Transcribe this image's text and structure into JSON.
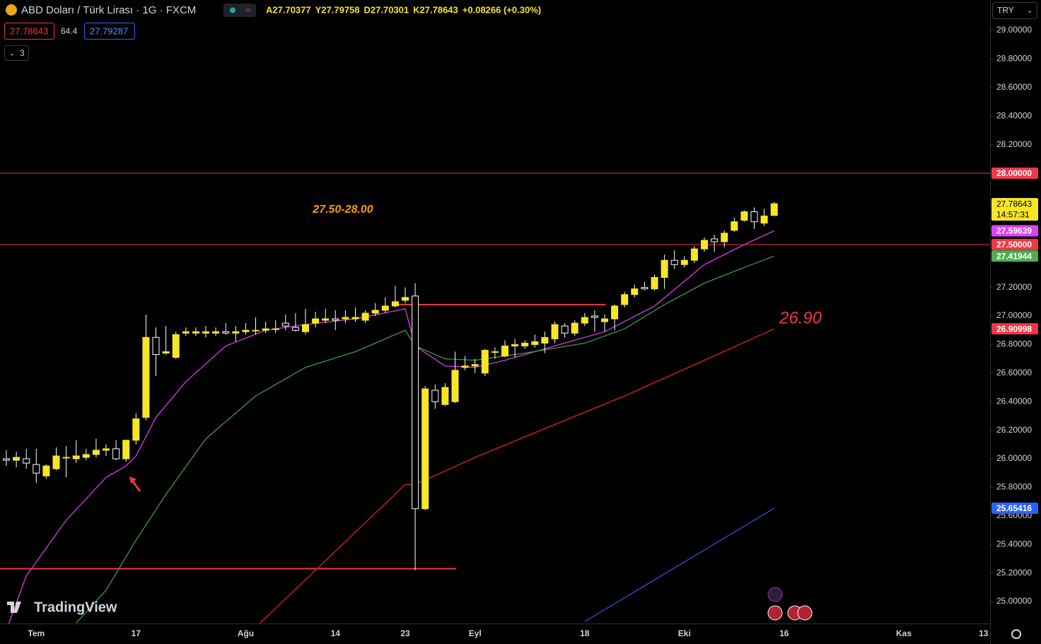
{
  "chart_data": {
    "type": "candlestick",
    "title": "ABD Doları / Türk Lirası · 1G · FXCM",
    "ohlc_labels": [
      "A",
      "Y",
      "D",
      "K"
    ],
    "change": "+0.08266 (+0.30%)",
    "indicator_values": [
      27.78643,
      64.4,
      27.79287
    ],
    "collapsed_count": 3,
    "currency": "TRY",
    "logo": "TradingView",
    "countdown": "14:57:31",
    "categories": [
      null,
      null,
      null,
      "Tem",
      null,
      null,
      null,
      null,
      null,
      null,
      null,
      null,
      null,
      "17",
      null,
      null,
      null,
      null,
      null,
      null,
      null,
      null,
      null,
      null,
      "Ağu",
      null,
      null,
      null,
      null,
      null,
      null,
      null,
      null,
      "14",
      null,
      null,
      null,
      null,
      null,
      null,
      "23",
      null,
      null,
      null,
      null,
      null,
      null,
      "Eyl",
      null,
      null,
      null,
      null,
      null,
      null,
      null,
      null,
      null,
      null,
      "18",
      null,
      null,
      null,
      null,
      null,
      null,
      null,
      null,
      null,
      "Eki",
      null,
      null,
      null,
      null,
      null,
      null,
      null,
      null,
      null,
      "16",
      null,
      null,
      null,
      null,
      null,
      null,
      null,
      null,
      null,
      null,
      null,
      "Kas",
      null,
      null,
      null,
      null,
      null,
      null,
      null,
      "13"
    ],
    "ohlc": [
      [
        26.0,
        26.06,
        25.95,
        25.99
      ],
      [
        25.99,
        26.05,
        25.94,
        26.01
      ],
      [
        26.0,
        26.07,
        25.93,
        25.97
      ],
      [
        25.96,
        26.07,
        25.83,
        25.9
      ],
      [
        25.88,
        25.96,
        25.86,
        25.95
      ],
      [
        25.93,
        26.08,
        25.92,
        26.02
      ],
      [
        26.01,
        26.09,
        25.87,
        26.01
      ],
      [
        26.0,
        26.13,
        25.97,
        26.02
      ],
      [
        26.01,
        26.07,
        25.99,
        26.03
      ],
      [
        26.03,
        26.14,
        26.01,
        26.06
      ],
      [
        26.06,
        26.1,
        26.02,
        26.07
      ],
      [
        26.07,
        26.13,
        25.99,
        26.0
      ],
      [
        26.0,
        26.13,
        25.98,
        26.13
      ],
      [
        26.13,
        26.32,
        26.1,
        26.28
      ],
      [
        26.29,
        27.01,
        26.27,
        26.85
      ],
      [
        26.85,
        26.92,
        26.58,
        26.73
      ],
      [
        26.74,
        26.93,
        26.73,
        26.75
      ],
      [
        26.71,
        26.89,
        26.7,
        26.87
      ],
      [
        26.88,
        26.92,
        26.86,
        26.89
      ],
      [
        26.88,
        26.92,
        26.86,
        26.89
      ],
      [
        26.88,
        26.93,
        26.85,
        26.89
      ],
      [
        26.88,
        26.92,
        26.86,
        26.89
      ],
      [
        26.89,
        26.95,
        26.87,
        26.88
      ],
      [
        26.88,
        26.93,
        26.82,
        26.89
      ],
      [
        26.89,
        26.95,
        26.87,
        26.9
      ],
      [
        26.9,
        26.99,
        26.87,
        26.9
      ],
      [
        26.9,
        26.96,
        26.88,
        26.91
      ],
      [
        26.91,
        26.97,
        26.88,
        26.91
      ],
      [
        26.95,
        27.01,
        26.9,
        26.93
      ],
      [
        26.92,
        27.02,
        26.89,
        26.9
      ],
      [
        26.89,
        27.05,
        26.87,
        26.94
      ],
      [
        26.95,
        27.03,
        26.92,
        26.98
      ],
      [
        26.97,
        27.05,
        26.95,
        26.98
      ],
      [
        26.98,
        27.04,
        26.9,
        26.97
      ],
      [
        26.98,
        27.04,
        26.95,
        26.99
      ],
      [
        26.98,
        27.06,
        26.96,
        26.99
      ],
      [
        26.97,
        27.04,
        26.95,
        27.02
      ],
      [
        27.02,
        27.09,
        27.0,
        27.04
      ],
      [
        27.04,
        27.13,
        27.02,
        27.07
      ],
      [
        27.07,
        27.21,
        27.06,
        27.1
      ],
      [
        27.11,
        27.2,
        27.09,
        27.13
      ],
      [
        27.14,
        27.23,
        25.22,
        25.65
      ],
      [
        25.65,
        26.51,
        25.64,
        26.49
      ],
      [
        26.48,
        26.52,
        26.35,
        26.4
      ],
      [
        26.38,
        26.53,
        26.37,
        26.5
      ],
      [
        26.4,
        26.75,
        26.39,
        26.62
      ],
      [
        26.64,
        26.72,
        26.62,
        26.65
      ],
      [
        26.65,
        26.7,
        26.6,
        26.66
      ],
      [
        26.6,
        26.77,
        26.58,
        26.76
      ],
      [
        26.75,
        26.78,
        26.7,
        26.75
      ],
      [
        26.72,
        26.83,
        26.71,
        26.79
      ],
      [
        26.79,
        26.84,
        26.71,
        26.8
      ],
      [
        26.79,
        26.83,
        26.77,
        26.81
      ],
      [
        26.8,
        26.87,
        26.78,
        26.82
      ],
      [
        26.81,
        26.89,
        26.74,
        26.85
      ],
      [
        26.84,
        26.96,
        26.81,
        26.94
      ],
      [
        26.93,
        26.95,
        26.85,
        26.88
      ],
      [
        26.88,
        26.97,
        26.86,
        26.95
      ],
      [
        26.95,
        27.02,
        26.93,
        26.99
      ],
      [
        27.0,
        27.04,
        26.89,
        26.99
      ],
      [
        26.96,
        27.01,
        26.89,
        26.98
      ],
      [
        26.98,
        27.08,
        26.9,
        27.07
      ],
      [
        27.08,
        27.17,
        27.06,
        27.15
      ],
      [
        27.15,
        27.22,
        27.13,
        27.19
      ],
      [
        27.2,
        27.24,
        27.18,
        27.19
      ],
      [
        27.19,
        27.29,
        27.18,
        27.27
      ],
      [
        27.27,
        27.43,
        27.19,
        27.39
      ],
      [
        27.39,
        27.46,
        27.33,
        27.36
      ],
      [
        27.36,
        27.42,
        27.34,
        27.39
      ],
      [
        27.39,
        27.49,
        27.37,
        27.47
      ],
      [
        27.47,
        27.55,
        27.45,
        27.53
      ],
      [
        27.54,
        27.57,
        27.45,
        27.52
      ],
      [
        27.52,
        27.6,
        27.48,
        27.58
      ],
      [
        27.6,
        27.69,
        27.59,
        27.66
      ],
      [
        27.67,
        27.74,
        27.66,
        27.73
      ],
      [
        27.73,
        27.76,
        27.61,
        27.66
      ],
      [
        27.65,
        27.75,
        27.63,
        27.7
      ],
      [
        27.70377,
        27.79758,
        27.70301,
        27.78643
      ],
      null,
      null,
      null,
      null,
      null,
      null,
      null,
      null,
      null,
      null,
      null,
      null,
      null,
      null,
      null,
      null,
      null,
      null,
      null,
      null,
      null
    ],
    "up_color": "#f7e626",
    "down_color": "#ffffff",
    "ylim": [
      24.8465,
      29.2129
    ],
    "yticks": [
      {
        "value": 25,
        "label": "25.00000"
      },
      {
        "value": 25.2,
        "label": "25.20000"
      },
      {
        "value": 25.4,
        "label": "25.40000"
      },
      {
        "value": 25.6,
        "label": "25.60000"
      },
      {
        "value": 25.8,
        "label": "25.80000"
      },
      {
        "value": 26,
        "label": "26.00000"
      },
      {
        "value": 26.2,
        "label": "26.20000"
      },
      {
        "value": 26.4,
        "label": "26.40000"
      },
      {
        "value": 26.6,
        "label": "26.60000"
      },
      {
        "value": 26.8,
        "label": "26.80000"
      },
      {
        "value": 27,
        "label": "27.00000"
      },
      {
        "value": 27.2,
        "label": "27.20000"
      },
      {
        "value": 27.4,
        "label": "27.40000"
      },
      {
        "value": 27.6,
        "label": "27.60000"
      },
      {
        "value": 27.8,
        "label": "27.80000"
      },
      {
        "value": 28,
        "label": "28.00000"
      },
      {
        "value": 28.2,
        "label": "28.20000"
      },
      {
        "value": 28.4,
        "label": "28.40000"
      },
      {
        "value": 28.6,
        "label": "28.60000"
      },
      {
        "value": 28.8,
        "label": "28.80000"
      },
      {
        "value": 29,
        "label": "29.00000"
      }
    ],
    "ma": [
      {
        "color": "#d63ce6",
        "x": [
          0,
          2,
          6,
          10,
          12,
          13,
          15,
          18,
          22,
          26,
          30,
          35,
          40,
          41,
          44,
          47,
          50,
          55,
          60,
          65,
          70,
          74,
          77
        ],
        "values": [
          24.8,
          25.18,
          25.57,
          25.87,
          25.95,
          26.02,
          26.29,
          26.54,
          26.79,
          26.9,
          26.94,
          26.98,
          27.05,
          26.79,
          26.65,
          26.64,
          26.69,
          26.79,
          26.89,
          27.07,
          27.36,
          27.5,
          27.59639
        ]
      },
      {
        "color": "#3d9a45",
        "x": [
          7,
          10,
          13,
          16,
          20,
          25,
          30,
          35,
          40,
          41,
          44,
          47,
          52,
          58,
          62,
          66,
          70,
          74,
          77
        ],
        "values": [
          24.85,
          25.08,
          25.43,
          25.75,
          26.14,
          26.44,
          26.64,
          26.75,
          26.9,
          26.79,
          26.7,
          26.69,
          26.74,
          26.81,
          26.91,
          27.08,
          27.23,
          27.34,
          27.41944
        ]
      },
      {
        "color": "#e0201b",
        "x": [
          25,
          40,
          41,
          47,
          55,
          62,
          70,
          77
        ],
        "values": [
          24.82,
          25.82,
          25.82,
          26.01,
          26.24,
          26.44,
          26.69,
          26.90998
        ]
      },
      {
        "color": "#2f4fd8",
        "x": [
          58,
          77
        ],
        "values": [
          24.86,
          25.65416
        ]
      }
    ],
    "levels": [
      {
        "value": 28,
        "label": "28.00000",
        "color": "#f23645"
      },
      {
        "value": 27.5,
        "label": "27.50000",
        "color": "#f23645"
      }
    ],
    "segments": [
      {
        "value": 27.08,
        "x": [
          39.1,
          60.1
        ],
        "color": "#f23645"
      },
      {
        "value": 25.23,
        "x": [
          -0.7,
          45.1
        ],
        "color": "#f23645"
      }
    ],
    "annotations": [
      {
        "text": "27.50-28.00",
        "color": "#ff9800"
      },
      {
        "text": "26.90",
        "color": "#f23645"
      }
    ]
  }
}
